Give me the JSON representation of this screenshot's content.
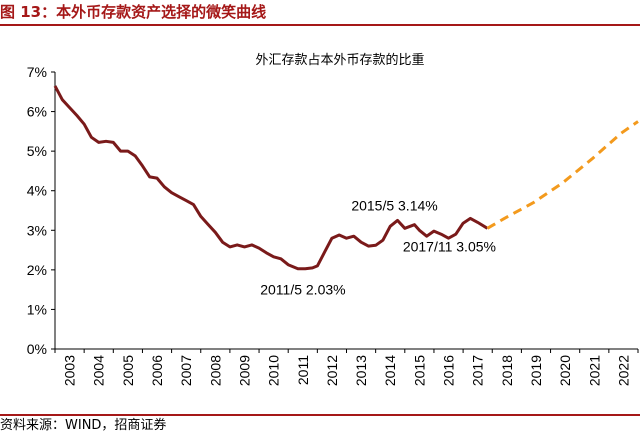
{
  "figure": {
    "title": "图 13：本外币存款资产选择的微笑曲线",
    "source": "资料来源：WIND，招商证券"
  },
  "colors": {
    "accent": "#a51818",
    "line": "#7a1a1a",
    "forecast": "#f39a1d"
  },
  "chart_data": {
    "type": "line",
    "title": "外汇存款占本外币存款的比重",
    "xlabel": "",
    "ylabel": "",
    "xlim": [
      2003,
      2023
    ],
    "ylim": [
      0,
      0.07
    ],
    "grid": false,
    "legend": "none",
    "x_ticks": [
      "2003",
      "2004",
      "2005",
      "2006",
      "2007",
      "2008",
      "2009",
      "2010",
      "2011",
      "2012",
      "2013",
      "2014",
      "2015",
      "2016",
      "2017",
      "2018",
      "2019",
      "2020",
      "2021",
      "2022"
    ],
    "y_ticks": [
      "0%",
      "1%",
      "2%",
      "3%",
      "4%",
      "5%",
      "6%",
      "7%"
    ],
    "series": [
      {
        "style": "solid",
        "points": [
          [
            "2003-01",
            0.0665
          ],
          [
            "2003-04",
            0.063
          ],
          [
            "2003-07",
            0.061
          ],
          [
            "2003-10",
            0.059
          ],
          [
            "2004-01",
            0.0568
          ],
          [
            "2004-04",
            0.0535
          ],
          [
            "2004-07",
            0.0522
          ],
          [
            "2004-10",
            0.0525
          ],
          [
            "2005-01",
            0.0522
          ],
          [
            "2005-04",
            0.05
          ],
          [
            "2005-07",
            0.05
          ],
          [
            "2005-10",
            0.0488
          ],
          [
            "2006-01",
            0.0463
          ],
          [
            "2006-04",
            0.0435
          ],
          [
            "2006-07",
            0.0432
          ],
          [
            "2006-10",
            0.041
          ],
          [
            "2007-01",
            0.0395
          ],
          [
            "2007-04",
            0.0385
          ],
          [
            "2007-07",
            0.0375
          ],
          [
            "2007-10",
            0.0365
          ],
          [
            "2008-01",
            0.0335
          ],
          [
            "2008-04",
            0.0315
          ],
          [
            "2008-07",
            0.0295
          ],
          [
            "2008-10",
            0.027
          ],
          [
            "2009-01",
            0.0258
          ],
          [
            "2009-04",
            0.0263
          ],
          [
            "2009-07",
            0.0258
          ],
          [
            "2009-10",
            0.0263
          ],
          [
            "2010-01",
            0.0255
          ],
          [
            "2010-04",
            0.0243
          ],
          [
            "2010-07",
            0.0233
          ],
          [
            "2010-10",
            0.0228
          ],
          [
            "2011-01",
            0.0213
          ],
          [
            "2011-05",
            0.0203
          ],
          [
            "2011-08",
            0.0203
          ],
          [
            "2011-11",
            0.0205
          ],
          [
            "2012-01",
            0.021
          ],
          [
            "2012-04",
            0.0245
          ],
          [
            "2012-07",
            0.028
          ],
          [
            "2012-10",
            0.0288
          ],
          [
            "2013-01",
            0.028
          ],
          [
            "2013-04",
            0.0285
          ],
          [
            "2013-07",
            0.027
          ],
          [
            "2013-10",
            0.026
          ],
          [
            "2014-01",
            0.0262
          ],
          [
            "2014-04",
            0.0275
          ],
          [
            "2014-07",
            0.031
          ],
          [
            "2014-10",
            0.0325
          ],
          [
            "2015-01",
            0.0305
          ],
          [
            "2015-05",
            0.0314
          ],
          [
            "2015-07",
            0.03
          ],
          [
            "2015-10",
            0.0285
          ],
          [
            "2016-01",
            0.0298
          ],
          [
            "2016-04",
            0.029
          ],
          [
            "2016-07",
            0.028
          ],
          [
            "2016-10",
            0.029
          ],
          [
            "2017-01",
            0.0318
          ],
          [
            "2017-04",
            0.033
          ],
          [
            "2017-07",
            0.032
          ],
          [
            "2017-11",
            0.0305
          ]
        ]
      },
      {
        "style": "dashed",
        "points": [
          [
            "2017-11",
            0.0305
          ],
          [
            "2018-06",
            0.033
          ],
          [
            "2019-06",
            0.037
          ],
          [
            "2020-06",
            0.042
          ],
          [
            "2021-06",
            0.048
          ],
          [
            "2022-06",
            0.0545
          ],
          [
            "2023-01",
            0.0575
          ]
        ]
      }
    ],
    "annotations": [
      {
        "text": "2011/5 2.03%",
        "x": "2011-05",
        "y": 0.0203
      },
      {
        "text": "2015/5 3.14%",
        "x": "2015-05",
        "y": 0.0314
      },
      {
        "text": "2017/11 3.05%",
        "x": "2017-11",
        "y": 0.0305
      }
    ]
  }
}
